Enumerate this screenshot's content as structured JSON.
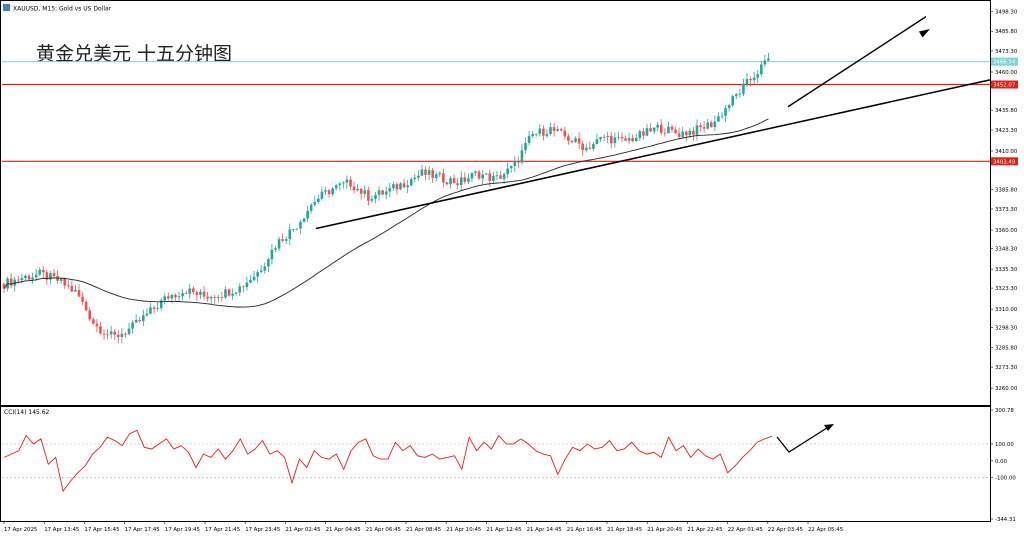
{
  "window": {
    "symbol_label": "XAUUSD, M15: Gold vs US Dollar",
    "overlay_title": "黄金兑美元 十五分钟图"
  },
  "colors": {
    "bull": "#26a69a",
    "bear": "#ef5350",
    "resistance": "#e0201b",
    "bid_line": "#7fd3d3",
    "trend": "#000000",
    "ma": "#222222",
    "cci": "#e0201b",
    "grid_dots": "#b0b0b0"
  },
  "chart_data": [
    {
      "type": "candlestick",
      "title": "XAUUSD, M15: Gold vs US Dollar",
      "ylim": [
        3250.0,
        3503.0
      ],
      "y_ticks": [
        "3498.30",
        "3485.80",
        "3473.30",
        "3460.00",
        "3435.80",
        "3423.30",
        "3410.00",
        "3385.80",
        "3373.30",
        "3360.00",
        "3348.30",
        "3335.30",
        "3323.30",
        "3310.00",
        "3298.30",
        "3285.80",
        "3273.30",
        "3260.00"
      ],
      "price_labels": [
        {
          "name": "bid",
          "value": 3466.54,
          "label": "3466.54",
          "color": "#7fd3d3"
        },
        {
          "name": "resistance-upper",
          "value": 3452.07,
          "label": "3452.07",
          "color": "#e0201b"
        },
        {
          "name": "resistance-lower",
          "value": 3403.49,
          "label": "3403.49",
          "color": "#e0201b"
        }
      ],
      "x_labels": [
        "17 Apr 2025",
        "17 Apr 13:45",
        "17 Apr 15:45",
        "17 Apr 17:45",
        "17 Apr 19:45",
        "17 Apr 21:45",
        "17 Apr 23:45",
        "21 Apr 02:45",
        "21 Apr 04:45",
        "21 Apr 06:45",
        "21 Apr 08:45",
        "21 Apr 10:45",
        "21 Apr 12:45",
        "21 Apr 14:45",
        "21 Apr 16:45",
        "21 Apr 18:45",
        "21 Apr 20:45",
        "21 Apr 22:45",
        "22 Apr 01:45",
        "22 Apr 03:45",
        "22 Apr 05:45"
      ],
      "close_path": [
        3326,
        3330,
        3332,
        3328,
        3320,
        3300,
        3292,
        3298,
        3308,
        3318,
        3322,
        3318,
        3320,
        3324,
        3334,
        3352,
        3362,
        3378,
        3386,
        3390,
        3381,
        3384,
        3390,
        3396,
        3393,
        3390,
        3396,
        3392,
        3400,
        3420,
        3424,
        3418,
        3412,
        3419,
        3416,
        3420,
        3425,
        3421,
        3423,
        3428,
        3442,
        3455,
        3468
      ]
    },
    {
      "type": "line",
      "title": "CCI(14) 145.62",
      "ylim": [
        -344.31,
        300.78
      ],
      "y_ticks": [
        "300.78",
        "100.00",
        "0.00",
        "-100.00",
        "-344.31"
      ],
      "levels": [
        100,
        -100
      ],
      "values": [
        20,
        40,
        60,
        150,
        100,
        130,
        -20,
        20,
        -180,
        -120,
        -70,
        -30,
        40,
        80,
        140,
        120,
        90,
        160,
        180,
        80,
        70,
        100,
        130,
        70,
        90,
        50,
        -40,
        40,
        20,
        70,
        10,
        60,
        130,
        40,
        70,
        120,
        40,
        60,
        20,
        -130,
        10,
        -40,
        60,
        20,
        10,
        40,
        -50,
        60,
        110,
        130,
        30,
        10,
        10,
        110,
        60,
        90,
        30,
        20,
        40,
        10,
        20,
        30,
        -50,
        140,
        60,
        110,
        70,
        150,
        100,
        100,
        130,
        100,
        60,
        40,
        30,
        -80,
        10,
        80,
        60,
        100,
        70,
        80,
        120,
        60,
        70,
        110,
        60,
        40,
        50,
        20,
        140,
        60,
        90,
        20,
        70,
        30,
        10,
        40,
        -70,
        -30,
        20,
        60,
        110,
        130,
        145.62
      ]
    }
  ]
}
